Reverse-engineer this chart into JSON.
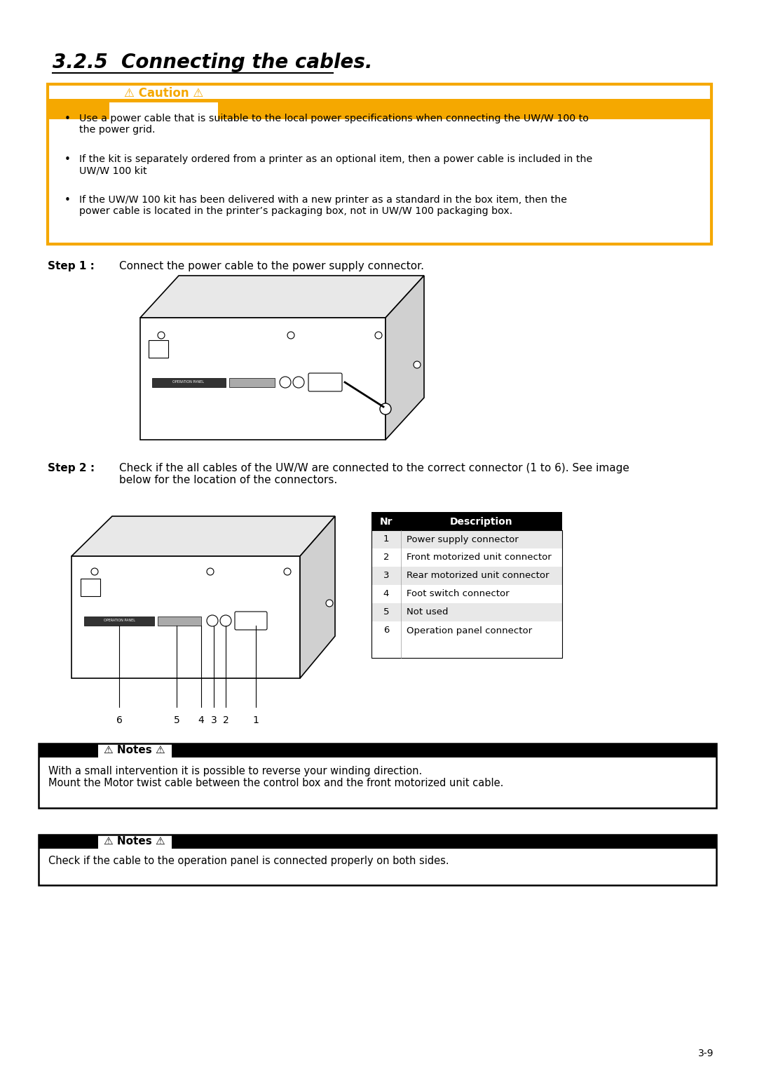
{
  "title": "3.2.5  Connecting the cables.",
  "bg_color": "#ffffff",
  "orange_color": "#F5A800",
  "black_color": "#000000",
  "gray_color": "#E8E8E8",
  "caution_title": "⚠ Caution ⚠",
  "caution_bullets": [
    "Use a power cable that is suitable to the local power specifications when connecting the UW/W 100 to\nthe power grid.",
    "If the kit is separately ordered from a printer as an optional item, then a power cable is included in the\nUW/W 100 kit",
    "If the UW/W 100 kit has been delivered with a new printer as a standard in the box item, then the\npower cable is located in the printer’s packaging box, not in UW/W 100 packaging box."
  ],
  "step1_label": "Step 1 :",
  "step1_text": "Connect the power cable to the power supply connector.",
  "step2_label": "Step 2 :",
  "step2_text": "Check if the all cables of the UW/W are connected to the correct connector (1 to 6). See image\nbelow for the location of the connectors.",
  "table_header": [
    "Nr",
    "Description"
  ],
  "table_rows": [
    [
      "1",
      "Power supply connector"
    ],
    [
      "2",
      "Front motorized unit connector"
    ],
    [
      "3",
      "Rear motorized unit connector"
    ],
    [
      "4",
      "Foot switch connector"
    ],
    [
      "5",
      "Not used"
    ],
    [
      "6",
      "Operation panel connector"
    ]
  ],
  "notes1_title": "⚠ Notes ⚠",
  "notes1_text": "With a small intervention it is possible to reverse your winding direction.\nMount the Motor twist cable between the control box and the front motorized unit cable.",
  "notes2_title": "⚠ Notes ⚠",
  "notes2_text": "Check if the cable to the operation panel is connected properly on both sides.",
  "page_number": "3-9"
}
